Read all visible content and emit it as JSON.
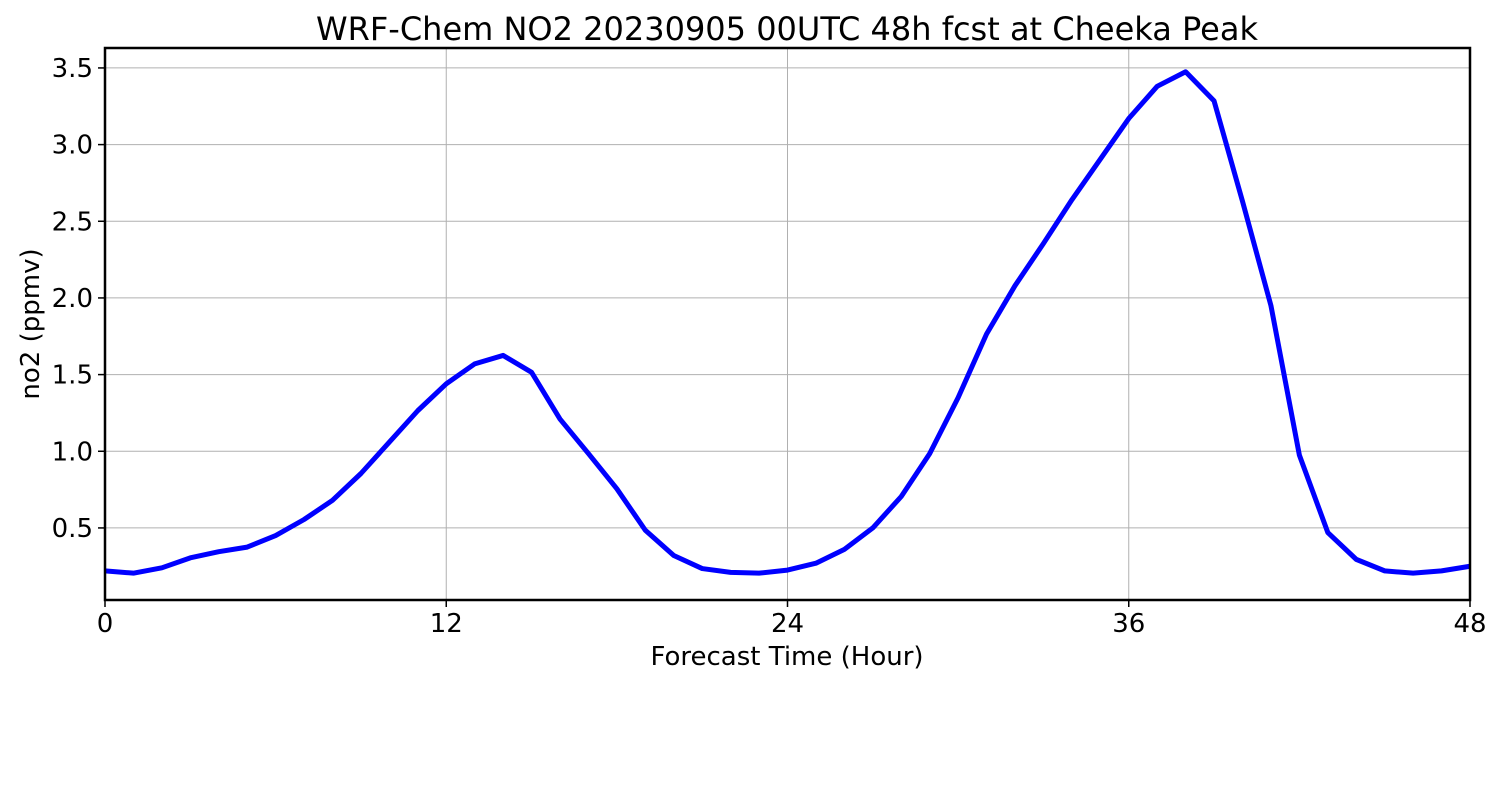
{
  "chart_data": {
    "type": "line",
    "title": "WRF-Chem NO2  20230905 00UTC 48h fcst at Cheeka Peak",
    "xlabel": "Forecast Time (Hour)",
    "ylabel": "no2  (ppmv)",
    "xlim": [
      0,
      48
    ],
    "ylim": [
      0.03,
      3.63
    ],
    "xticks": [
      0,
      12,
      24,
      36,
      48
    ],
    "xtick_labels": [
      "0",
      "12",
      "24",
      "36",
      "48"
    ],
    "yticks": [
      0.5,
      1.0,
      1.5,
      2.0,
      2.5,
      3.0,
      3.5
    ],
    "ytick_labels": [
      "0.5",
      "1.0",
      "1.5",
      "2.0",
      "2.5",
      "3.0",
      "3.5"
    ],
    "grid": true,
    "series": [
      {
        "color": "#0000ff",
        "x": [
          0,
          1,
          2,
          3,
          4,
          5,
          6,
          7,
          8,
          9,
          10,
          11,
          12,
          13,
          14,
          15,
          16,
          17,
          18,
          19,
          20,
          21,
          22,
          23,
          24,
          25,
          26,
          27,
          28,
          29,
          30,
          31,
          32,
          33,
          34,
          35,
          36,
          37,
          38,
          39,
          40,
          41,
          42,
          43,
          44,
          45,
          46,
          47,
          48
        ],
        "y": [
          0.22,
          0.205,
          0.24,
          0.305,
          0.345,
          0.375,
          0.45,
          0.555,
          0.68,
          0.855,
          1.06,
          1.265,
          1.44,
          1.57,
          1.625,
          1.515,
          1.21,
          0.985,
          0.755,
          0.485,
          0.32,
          0.235,
          0.21,
          0.205,
          0.225,
          0.27,
          0.36,
          0.5,
          0.705,
          0.985,
          1.35,
          1.765,
          2.08,
          2.355,
          2.64,
          2.905,
          3.17,
          3.38,
          3.475,
          3.285,
          2.63,
          1.95,
          0.975,
          0.47,
          0.295,
          0.22,
          0.205,
          0.22,
          0.25
        ]
      }
    ]
  }
}
